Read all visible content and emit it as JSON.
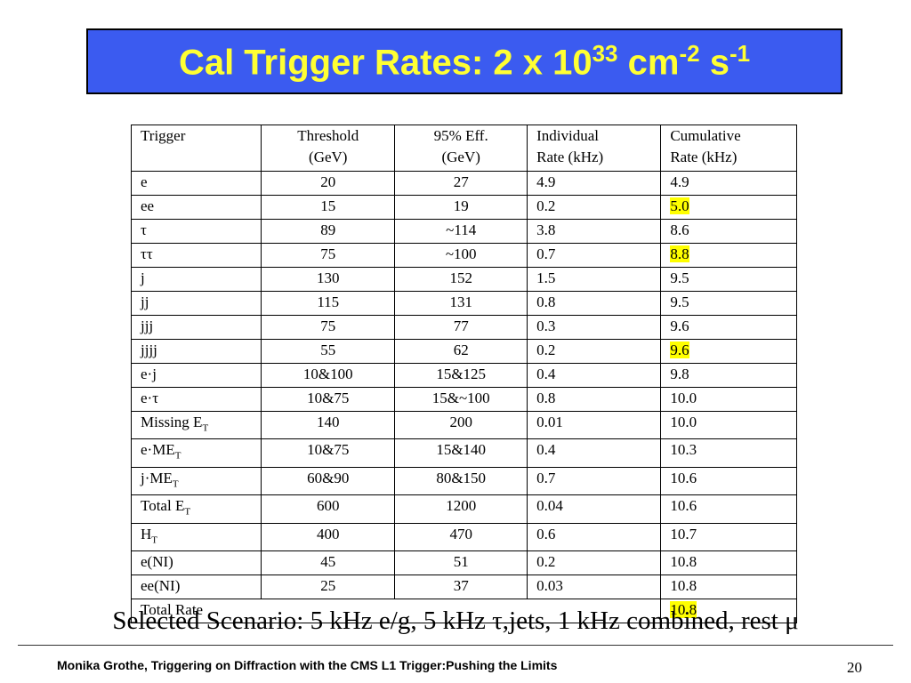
{
  "title": {
    "main": "Cal Trigger Rates: 2 x 10",
    "exp1": "33",
    "unit1": " cm",
    "exp2": "-2",
    "unit2": " s",
    "exp3": "-1"
  },
  "table": {
    "headers": {
      "trigger": "Trigger",
      "threshold_l1": "Threshold",
      "threshold_l2": "(GeV)",
      "eff_l1": "95% Eff.",
      "eff_l2": "(GeV)",
      "individual_l1": "Individual",
      "individual_l2": "Rate (kHz)",
      "cumulative_l1": "Cumulative",
      "cumulative_l2": "Rate (kHz)"
    },
    "rows": [
      {
        "trigger": "e",
        "sub": "",
        "threshold": "20",
        "eff": "27",
        "individual": "4.9",
        "cumulative": "4.9",
        "highlight": false
      },
      {
        "trigger": "ee",
        "sub": "",
        "threshold": "15",
        "eff": "19",
        "individual": "0.2",
        "cumulative": "5.0",
        "highlight": true
      },
      {
        "trigger": "τ",
        "sub": "",
        "threshold": "89",
        "eff": "~114",
        "individual": "3.8",
        "cumulative": "8.6",
        "highlight": false
      },
      {
        "trigger": "ττ",
        "sub": "",
        "threshold": "75",
        "eff": "~100",
        "individual": "0.7",
        "cumulative": "8.8",
        "highlight": true
      },
      {
        "trigger": "j",
        "sub": "",
        "threshold": "130",
        "eff": "152",
        "individual": "1.5",
        "cumulative": "9.5",
        "highlight": false
      },
      {
        "trigger": "jj",
        "sub": "",
        "threshold": "115",
        "eff": "131",
        "individual": "0.8",
        "cumulative": "9.5",
        "highlight": false
      },
      {
        "trigger": "jjj",
        "sub": "",
        "threshold": "75",
        "eff": "77",
        "individual": "0.3",
        "cumulative": "9.6",
        "highlight": false
      },
      {
        "trigger": "jjjj",
        "sub": "",
        "threshold": "55",
        "eff": "62",
        "individual": "0.2",
        "cumulative": "9.6",
        "highlight": true
      },
      {
        "trigger": "e·j",
        "sub": "",
        "threshold": "10&100",
        "eff": "15&125",
        "individual": "0.4",
        "cumulative": "9.8",
        "highlight": false
      },
      {
        "trigger": "e·τ",
        "sub": "",
        "threshold": "10&75",
        "eff": "15&~100",
        "individual": "0.8",
        "cumulative": "10.0",
        "highlight": false
      },
      {
        "trigger": "Missing E",
        "sub": "T",
        "threshold": "140",
        "eff": "200",
        "individual": "0.01",
        "cumulative": "10.0",
        "highlight": false
      },
      {
        "trigger": "e·ME",
        "sub": "T",
        "threshold": "10&75",
        "eff": "15&140",
        "individual": "0.4",
        "cumulative": "10.3",
        "highlight": false
      },
      {
        "trigger": "j·ME",
        "sub": "T",
        "threshold": "60&90",
        "eff": "80&150",
        "individual": "0.7",
        "cumulative": "10.6",
        "highlight": false
      },
      {
        "trigger": "Total E",
        "sub": "T",
        "threshold": "600",
        "eff": "1200",
        "individual": "0.04",
        "cumulative": "10.6",
        "highlight": false
      },
      {
        "trigger": "H",
        "sub": "T",
        "threshold": "400",
        "eff": "470",
        "individual": "0.6",
        "cumulative": "10.7",
        "highlight": false
      },
      {
        "trigger": "e(NI)",
        "sub": "",
        "threshold": "45",
        "eff": "51",
        "individual": "0.2",
        "cumulative": "10.8",
        "highlight": false
      },
      {
        "trigger": "ee(NI)",
        "sub": "",
        "threshold": "25",
        "eff": "37",
        "individual": "0.03",
        "cumulative": "10.8",
        "highlight": false
      }
    ],
    "total": {
      "label": "Total Rate",
      "cumulative": "10.8",
      "highlight": true
    }
  },
  "scenario": "Selected Scenario: 5 kHz e/g, 5 kHz τ,jets, 1 kHz combined, rest μ",
  "footer": {
    "text": "Monika Grothe, Triggering on Diffraction with the CMS L1 Trigger:Pushing the Limits",
    "page": "20"
  },
  "colors": {
    "title_bg": "#3b5bf0",
    "title_text": "#ffff33",
    "highlight": "#ffff00"
  }
}
